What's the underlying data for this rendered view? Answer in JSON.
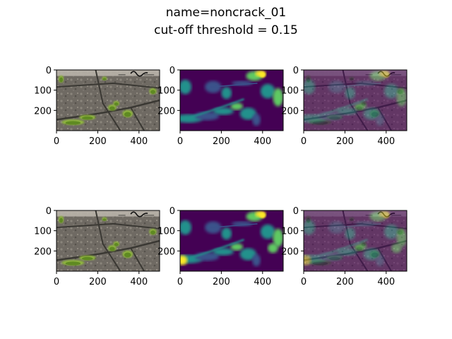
{
  "figure": {
    "title_line1": "name=noncrack_01",
    "title_line2": "cut-off threshold = 0.15"
  },
  "chart_data": {
    "type": "image-grid",
    "rows": 2,
    "cols": 3,
    "xlim": [
      0,
      500
    ],
    "ylim": [
      300,
      0
    ],
    "xticks": [
      0,
      200,
      400
    ],
    "yticks": [
      0,
      100,
      200
    ],
    "xtick_labels": [
      "0",
      "200",
      "400"
    ],
    "ytick_labels": [
      "0",
      "100",
      "200"
    ],
    "panels": [
      {
        "row": 0,
        "col": 0,
        "kind": "photo"
      },
      {
        "row": 0,
        "col": 1,
        "kind": "heatmap"
      },
      {
        "row": 0,
        "col": 2,
        "kind": "overlay"
      },
      {
        "row": 1,
        "col": 0,
        "kind": "photo"
      },
      {
        "row": 1,
        "col": 1,
        "kind": "heatmap"
      },
      {
        "row": 1,
        "col": 2,
        "kind": "overlay"
      }
    ],
    "colors": {
      "heatmap_background": "#440154",
      "heatmap_low": "#3b528b",
      "heatmap_mid": "#21918c",
      "heatmap_high": "#5ec962",
      "heatmap_peak": "#fde725",
      "photo_stone": "#6f6a63",
      "photo_moss": "#8fb83a",
      "overlay_tint": "#8a6c7e"
    }
  }
}
